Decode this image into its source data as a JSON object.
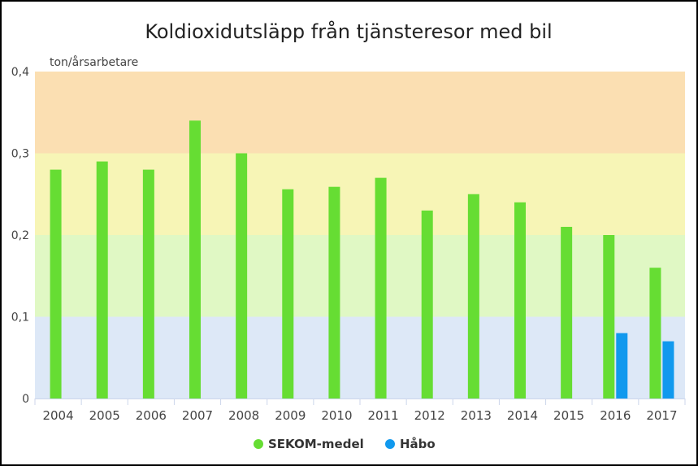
{
  "chart_data": {
    "type": "bar",
    "title": "Koldioxidutsläpp från tjänsteresor med bil",
    "ylabel": "ton/årsarbetare",
    "xlabel": "",
    "ylim": [
      0,
      0.4
    ],
    "yticks": [
      "0",
      "0,1",
      "0,2",
      "0,3",
      "0,4"
    ],
    "categories": [
      "2004",
      "2005",
      "2006",
      "2007",
      "2008",
      "2009",
      "2010",
      "2011",
      "2012",
      "2013",
      "2014",
      "2015",
      "2016",
      "2017"
    ],
    "series": [
      {
        "name": "SEKOM-medel",
        "color": "#66dd33",
        "values": [
          0.28,
          0.29,
          0.28,
          0.34,
          0.3,
          0.256,
          0.259,
          0.27,
          0.23,
          0.25,
          0.24,
          0.21,
          0.2,
          0.16
        ]
      },
      {
        "name": "Håbo",
        "color": "#1199ee",
        "values": [
          null,
          null,
          null,
          null,
          null,
          null,
          null,
          null,
          null,
          null,
          null,
          null,
          0.08,
          0.07
        ]
      }
    ],
    "bands": [
      {
        "from": 0,
        "to": 0.1,
        "color": "#dde8f7"
      },
      {
        "from": 0.1,
        "to": 0.2,
        "color": "#e0f8c4"
      },
      {
        "from": 0.2,
        "to": 0.3,
        "color": "#f7f5b6"
      },
      {
        "from": 0.3,
        "to": 0.4,
        "color": "#fbdfb2"
      }
    ],
    "legend_position": "bottom"
  }
}
